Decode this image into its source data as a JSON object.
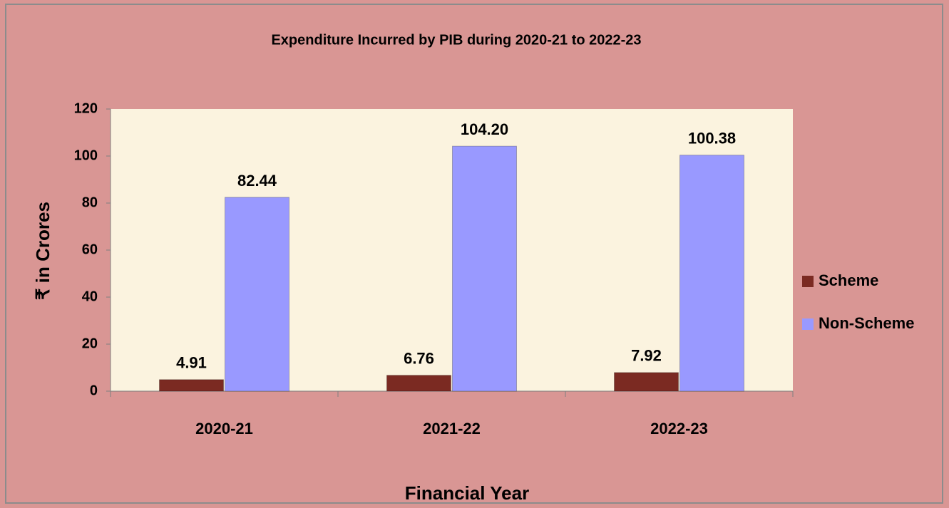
{
  "chart_data": {
    "type": "bar",
    "title": "Expenditure Incurred by PIB during 2020-21 to 2022-23",
    "x_label": "Financial Year",
    "y_label": "₹ in Crores",
    "categories": [
      "2020-21",
      "2021-22",
      "2022-23"
    ],
    "series": [
      {
        "name": "Scheme",
        "color": "#7b2a22",
        "values": [
          4.91,
          6.76,
          7.92
        ],
        "value_labels": [
          "4.91",
          "6.76",
          "7.92"
        ]
      },
      {
        "name": "Non-Scheme",
        "color": "#9999ff",
        "values": [
          82.44,
          104.2,
          100.38
        ],
        "value_labels": [
          "82.44",
          "104.20",
          "100.38"
        ]
      }
    ],
    "ylim": [
      0,
      120
    ],
    "yticks": [
      0,
      20,
      40,
      60,
      80,
      100,
      120
    ],
    "grid": false,
    "legend": "right"
  }
}
